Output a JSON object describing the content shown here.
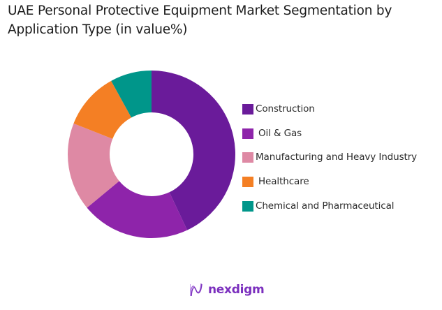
{
  "title_line1": "UAE Personal Protective Equipment Market Segmentation by",
  "title_line2": "Application Type (in value%)",
  "chart_data": {
    "type": "pie",
    "subtype": "donut",
    "title": "UAE Personal Protective Equipment Market Segmentation by Application Type (in value%)",
    "categories": [
      "Construction",
      "Oil & Gas",
      "Manufacturing and Heavy Industry",
      "Healthcare",
      "Chemical and Pharmaceutical"
    ],
    "values": [
      43,
      21,
      17,
      11,
      8
    ],
    "colors": [
      "#6a1b9a",
      "#8e24aa",
      "#de89a4",
      "#f47f24",
      "#00968a"
    ],
    "start_angle_deg": 0,
    "direction": "clockwise",
    "legend_position": "right",
    "data_labels": false
  },
  "legend": [
    {
      "label": "Construction",
      "color": "#6a1b9a"
    },
    {
      "label": "Oil & Gas",
      "color": "#8e24aa"
    },
    {
      "label": "Manufacturing and Heavy Industry",
      "color": "#de89a4"
    },
    {
      "label": "Healthcare",
      "color": "#f47f24"
    },
    {
      "label": "Chemical and Pharmaceutical",
      "color": "#00968a"
    }
  ],
  "logo": {
    "text": "nexdigm",
    "color": "#7b2fbe"
  }
}
